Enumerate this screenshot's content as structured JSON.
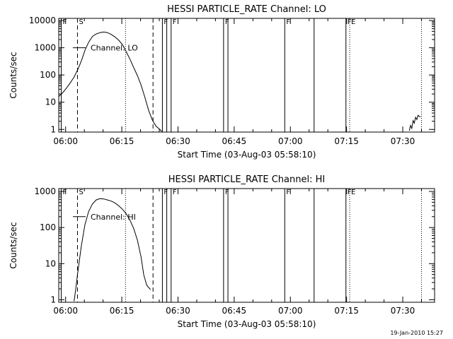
{
  "footer_date": "19-Jan-2010 15:27",
  "chart_data": [
    {
      "type": "line",
      "title": "HESSI PARTICLE_RATE Channel: LO",
      "xlabel": "Start Time (03-Aug-03 05:58:10)",
      "ylabel": "Counts/sec",
      "yscale": "log",
      "xlim": [
        "05:58:10",
        "07:38:30"
      ],
      "ylim": [
        0.8,
        12000
      ],
      "x_ticks": [
        "06:00",
        "06:15",
        "06:30",
        "06:45",
        "07:00",
        "07:15",
        "07:30"
      ],
      "y_ticks": [
        "1",
        "10",
        "100",
        "1000",
        "10000"
      ],
      "legend": {
        "label": "Channel: LO",
        "placement": "top-left"
      },
      "series": [
        {
          "name": "Channel: LO",
          "segments": [
            {
              "x": [
                "05:58:10",
                "05:59:10",
                "06:00:10",
                "06:01:10",
                "06:02:10",
                "06:03:10",
                "06:04:10",
                "06:05:10",
                "06:06:10",
                "06:07:10",
                "06:08:10",
                "06:09:10",
                "06:10:10",
                "06:11:10",
                "06:12:10",
                "06:13:10",
                "06:14:10",
                "06:15:10",
                "06:16:10",
                "06:17:10",
                "06:18:10",
                "06:19:10",
                "06:20:10",
                "06:21:10",
                "06:22:10",
                "06:23:10",
                "06:24:10",
                "06:25:10",
                "06:25:40"
              ],
              "y": [
                16,
                22,
                32,
                50,
                80,
                150,
                320,
                800,
                1600,
                2600,
                3200,
                3600,
                3800,
                3600,
                3100,
                2500,
                1900,
                1300,
                720,
                380,
                190,
                95,
                42,
                15,
                5,
                2.2,
                1.3,
                1.0,
                0.85
              ]
            },
            {
              "x": [
                "07:31:45",
                "07:32:05",
                "07:32:25",
                "07:32:45",
                "07:33:05",
                "07:33:25",
                "07:33:45",
                "07:34:05",
                "07:34:25",
                "07:34:45"
              ],
              "y": [
                0.9,
                1.4,
                1.1,
                2.1,
                1.7,
                2.8,
                2.3,
                3.3,
                3.0,
                2.9
              ]
            }
          ]
        }
      ],
      "flag_lines": [
        {
          "x": "05:58:50",
          "style": "solid",
          "label": "F"
        },
        {
          "x": "06:03:10",
          "style": "dashed",
          "label": "S"
        },
        {
          "x": "06:16:00",
          "style": "dotted",
          "label": ""
        },
        {
          "x": "06:23:20",
          "style": "dashed",
          "label": ""
        },
        {
          "x": "06:25:50",
          "style": "solid",
          "label": "F"
        },
        {
          "x": "06:27:00",
          "style": "solid",
          "label": ""
        },
        {
          "x": "06:28:10",
          "style": "solid",
          "label": "F"
        },
        {
          "x": "06:42:10",
          "style": "solid",
          "label": "F"
        },
        {
          "x": "06:43:20",
          "style": "solid",
          "label": ""
        },
        {
          "x": "06:58:30",
          "style": "solid",
          "label": "F"
        },
        {
          "x": "07:06:20",
          "style": "solid",
          "label": ""
        },
        {
          "x": "07:14:50",
          "style": "solid",
          "label": "F"
        },
        {
          "x": "07:15:50",
          "style": "dotted",
          "label": "E"
        },
        {
          "x": "07:35:00",
          "style": "dotted",
          "label": ""
        }
      ]
    },
    {
      "type": "line",
      "title": "HESSI PARTICLE_RATE Channel: HI",
      "xlabel": "Start Time (03-Aug-03 05:58:10)",
      "ylabel": "Counts/sec",
      "yscale": "log",
      "xlim": [
        "05:58:10",
        "07:38:30"
      ],
      "ylim": [
        0.85,
        1200
      ],
      "x_ticks": [
        "06:00",
        "06:15",
        "06:30",
        "06:45",
        "07:00",
        "07:15",
        "07:30"
      ],
      "y_ticks": [
        "1",
        "10",
        "100",
        "1000"
      ],
      "legend": {
        "label": "Channel: HI",
        "placement": "top-left"
      },
      "series": [
        {
          "name": "Channel: HI",
          "segments": [
            {
              "x": [
                "06:02:15",
                "06:02:40",
                "06:03:10",
                "06:04:10",
                "06:05:10",
                "06:06:10",
                "06:07:10",
                "06:08:10",
                "06:09:10",
                "06:10:10",
                "06:11:10",
                "06:12:10",
                "06:13:10",
                "06:14:10",
                "06:15:10",
                "06:16:10",
                "06:17:10",
                "06:18:10",
                "06:19:10",
                "06:20:10",
                "06:20:50",
                "06:21:40",
                "06:22:40"
              ],
              "y": [
                0.9,
                1.8,
                5,
                30,
                120,
                280,
                450,
                580,
                630,
                620,
                580,
                540,
                480,
                400,
                320,
                240,
                160,
                95,
                45,
                15,
                5,
                2.5,
                1.9
              ]
            }
          ]
        }
      ],
      "flag_lines": [
        {
          "x": "05:58:50",
          "style": "solid",
          "label": "F"
        },
        {
          "x": "06:03:10",
          "style": "dashed",
          "label": "S"
        },
        {
          "x": "06:16:00",
          "style": "dotted",
          "label": ""
        },
        {
          "x": "06:23:20",
          "style": "dashed",
          "label": ""
        },
        {
          "x": "06:25:50",
          "style": "solid",
          "label": "F"
        },
        {
          "x": "06:27:00",
          "style": "solid",
          "label": ""
        },
        {
          "x": "06:28:10",
          "style": "solid",
          "label": "F"
        },
        {
          "x": "06:42:10",
          "style": "solid",
          "label": "F"
        },
        {
          "x": "06:43:20",
          "style": "solid",
          "label": ""
        },
        {
          "x": "06:58:30",
          "style": "solid",
          "label": "F"
        },
        {
          "x": "07:06:20",
          "style": "solid",
          "label": ""
        },
        {
          "x": "07:14:50",
          "style": "solid",
          "label": "F"
        },
        {
          "x": "07:15:50",
          "style": "dotted",
          "label": "E"
        },
        {
          "x": "07:35:00",
          "style": "dotted",
          "label": ""
        }
      ]
    }
  ]
}
